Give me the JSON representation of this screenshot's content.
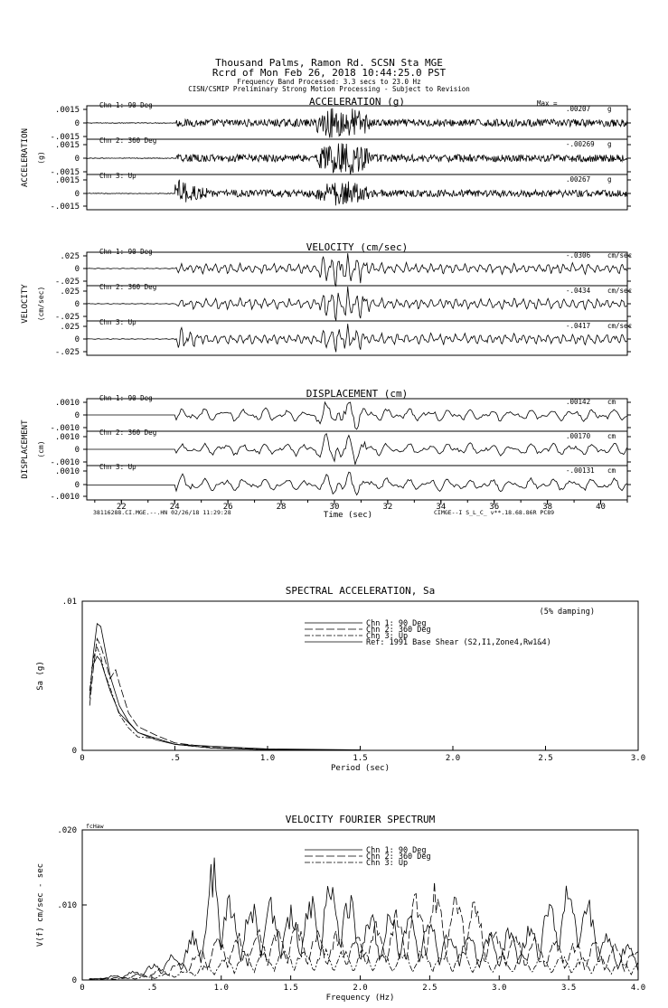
{
  "header": {
    "line1": "Thousand Palms, Ramon Rd.    SCSN Sta MGE",
    "line2": "Rcrd of Mon Feb 26, 2018 10:44:25.0 PST",
    "line3": "Frequency Band Processed: 3.3 secs to 23.0 Hz",
    "line4": "CISN/CSMIP Preliminary Strong Motion Processing - Subject to Revision"
  },
  "time_series": {
    "x_label": "Time (sec)",
    "x_ticks": [
      "22",
      "24",
      "26",
      "28",
      "30",
      "32",
      "34",
      "36",
      "38",
      "40"
    ],
    "footer_left": "38116288.CI.MGE.--.HN 02/26/18 11:29:28",
    "footer_right": "CIMGE--I  S_L_C_  v**.18.68.86R PC89",
    "max_prefix": "Max =",
    "panels": [
      {
        "title": "ACCELERATION (g)",
        "side_label": "ACCELERATION",
        "unit_label": "(g)",
        "unit": "g",
        "y_ticks": [
          ".0015",
          "0",
          "-.0015"
        ],
        "channels": [
          {
            "name": "Chn 1: 90 Deg",
            "max": ".00207"
          },
          {
            "name": "Chn 2: 360 Deg",
            "max": "-.00269"
          },
          {
            "name": "Chn 3: Up",
            "max": ".00267"
          }
        ]
      },
      {
        "title": "VELOCITY (cm/sec)",
        "side_label": "VELOCITY",
        "unit_label": "(cm/sec)",
        "unit": "cm/sec",
        "y_ticks": [
          ".025",
          "0",
          "-.025"
        ],
        "channels": [
          {
            "name": "Chn 1: 90 Deg",
            "max": "-.0306"
          },
          {
            "name": "Chn 2: 360 Deg",
            "max": "-.0434"
          },
          {
            "name": "Chn 3: Up",
            "max": "-.0417"
          }
        ]
      },
      {
        "title": "DISPLACEMENT (cm)",
        "side_label": "DISPLACEMENT",
        "unit_label": "(cm)",
        "unit": "cm",
        "y_ticks": [
          ".0010",
          "0",
          "-.0010"
        ],
        "channels": [
          {
            "name": "Chn 1: 90 Deg",
            "max": ".00142"
          },
          {
            "name": "Chn 2: 360 Deg",
            "max": ".00170"
          },
          {
            "name": "Chn 3: Up",
            "max": "-.00131"
          }
        ]
      }
    ]
  },
  "chart_data": [
    {
      "type": "line",
      "title": "SPECTRAL ACCELERATION, Sa",
      "xlabel": "Period (sec)",
      "ylabel": "Sa (g)",
      "xlim": [
        0,
        3.0
      ],
      "ylim": [
        0,
        0.01
      ],
      "x_ticks": [
        "0",
        ".5",
        "1.0",
        "1.5",
        "2.0",
        "2.5",
        "3.0"
      ],
      "y_ticks": [
        "0",
        ".01"
      ],
      "annotation": "(5% damping)",
      "legend": [
        "Chn 1: 90 Deg",
        "Chn 2: 360 Deg",
        "Chn 3: Up",
        "Ref: 1991 Base Shear (S2,I1,Zone4,Rw1&4)"
      ],
      "series": [
        {
          "name": "Chn 1: 90 Deg",
          "dash": "",
          "x": [
            0.04,
            0.06,
            0.08,
            0.1,
            0.12,
            0.15,
            0.2,
            0.25,
            0.3,
            0.4,
            0.5,
            0.7,
            1.0,
            1.5
          ],
          "y": [
            0.0035,
            0.0065,
            0.0085,
            0.0083,
            0.007,
            0.005,
            0.003,
            0.0019,
            0.0012,
            0.0007,
            0.0004,
            0.00015,
            5e-05,
            2e-05
          ]
        },
        {
          "name": "Chn 2: 360 Deg",
          "dash": "9,3",
          "x": [
            0.04,
            0.06,
            0.08,
            0.1,
            0.12,
            0.15,
            0.18,
            0.2,
            0.25,
            0.3,
            0.4,
            0.5,
            0.7,
            1.0,
            1.5
          ],
          "y": [
            0.003,
            0.0055,
            0.0075,
            0.007,
            0.0062,
            0.0048,
            0.0054,
            0.0045,
            0.0025,
            0.0016,
            0.001,
            0.0005,
            0.0002,
            6e-05,
            2e-05
          ]
        },
        {
          "name": "Chn 3: Up",
          "dash": "6,2,2,2",
          "x": [
            0.04,
            0.06,
            0.08,
            0.1,
            0.12,
            0.15,
            0.2,
            0.25,
            0.3,
            0.4,
            0.5,
            0.7,
            1.0,
            1.5
          ],
          "y": [
            0.004,
            0.0062,
            0.0069,
            0.0063,
            0.0052,
            0.0042,
            0.0024,
            0.0015,
            0.0009,
            0.0008,
            0.0004,
            0.00015,
            5e-05,
            2e-05
          ]
        },
        {
          "name": "Ref: 1991 Base Shear (S2,I1,Zone4,Rw1&4)",
          "dash": "",
          "x": [
            0.05,
            0.08,
            0.1,
            0.15,
            0.2,
            0.3,
            0.5,
            1.0,
            1.5
          ],
          "y": [
            0.0055,
            0.0063,
            0.006,
            0.004,
            0.0025,
            0.0012,
            0.0004,
            0.0001,
            3e-05
          ]
        }
      ]
    },
    {
      "type": "line",
      "title": "VELOCITY FOURIER SPECTRUM",
      "xlabel": "Frequency (Hz)",
      "ylabel": "V(f)  cm/sec - sec",
      "xlim": [
        0,
        4.0
      ],
      "ylim": [
        0,
        0.02
      ],
      "x_ticks": [
        "0",
        ".5",
        "1.0",
        "1.5",
        "2.0",
        "2.5",
        "3.0",
        "3.5",
        "4.0"
      ],
      "y_ticks": [
        "0",
        ".010",
        ".020"
      ],
      "corner_label": "fcHaw",
      "legend": [
        "Chn 1: 90 Deg",
        "Chn 2: 360 Deg",
        "Chn 3: Up"
      ],
      "series": [
        {
          "name": "Chn 1: 90 Deg",
          "dash": "",
          "x": [
            0.1,
            0.3,
            0.5,
            0.7,
            0.85,
            0.95,
            1.1,
            1.3,
            1.5,
            1.75,
            1.85,
            2.0,
            2.3,
            2.6,
            2.9,
            3.2,
            3.5,
            3.55,
            3.8,
            4.0
          ],
          "y": [
            0.0002,
            0.0009,
            0.002,
            0.0045,
            0.0075,
            0.0168,
            0.009,
            0.0115,
            0.0095,
            0.013,
            0.0142,
            0.0085,
            0.0095,
            0.0075,
            0.006,
            0.007,
            0.0135,
            0.0142,
            0.0055,
            0.005
          ]
        },
        {
          "name": "Chn 2: 360 Deg",
          "dash": "9,3",
          "x": [
            0.1,
            0.3,
            0.5,
            0.7,
            0.9,
            1.1,
            1.3,
            1.5,
            1.7,
            2.0,
            2.3,
            2.45,
            2.6,
            2.7,
            2.8,
            3.0,
            3.3,
            3.6,
            3.9,
            4.0
          ],
          "y": [
            0.0002,
            0.0005,
            0.0012,
            0.0028,
            0.005,
            0.0065,
            0.007,
            0.0075,
            0.0065,
            0.006,
            0.0095,
            0.012,
            0.013,
            0.0128,
            0.0125,
            0.0065,
            0.0055,
            0.005,
            0.0045,
            0.004
          ]
        },
        {
          "name": "Chn 3: Up",
          "dash": "6,2,2,2",
          "x": [
            0.1,
            0.3,
            0.5,
            0.7,
            0.9,
            1.1,
            1.3,
            1.5,
            1.7,
            2.0,
            2.3,
            2.5,
            2.8,
            3.1,
            3.4,
            3.7,
            4.0
          ],
          "y": [
            0.0001,
            0.0003,
            0.0006,
            0.0012,
            0.0022,
            0.0035,
            0.004,
            0.0045,
            0.0042,
            0.004,
            0.0038,
            0.0042,
            0.0036,
            0.0034,
            0.0032,
            0.003,
            0.0028
          ]
        }
      ]
    }
  ]
}
